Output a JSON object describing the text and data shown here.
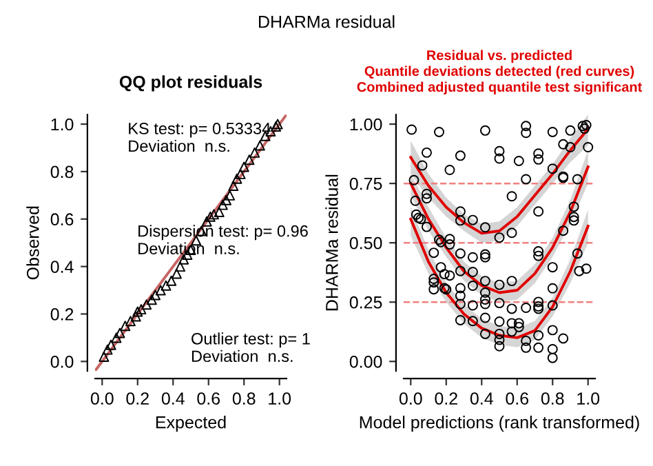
{
  "chart_data": [
    {
      "type": "scatter",
      "title": "DHARMa residual",
      "subtitle": "QQ plot residuals",
      "xlabel": "Expected",
      "ylabel": "Observed",
      "xlim": [
        -0.04,
        1.04
      ],
      "ylim": [
        -0.04,
        1.04
      ],
      "xticks": [
        {
          "value": 0,
          "label": "0.0"
        },
        {
          "value": 0.2,
          "label": "0.2"
        },
        {
          "value": 0.4,
          "label": "0.4"
        },
        {
          "value": 0.6,
          "label": "0.6"
        },
        {
          "value": 0.8,
          "label": "0.8"
        },
        {
          "value": 1,
          "label": "1.0"
        }
      ],
      "yticks": [
        {
          "value": 0,
          "label": "0.0"
        },
        {
          "value": 0.2,
          "label": "0.2"
        },
        {
          "value": 0.4,
          "label": "0.4"
        },
        {
          "value": 0.6,
          "label": "0.6"
        },
        {
          "value": 0.8,
          "label": "0.8"
        },
        {
          "value": 1,
          "label": "1.0"
        }
      ],
      "grid": false,
      "legend": false,
      "annotations": [
        "KS test: p= 0.53334\nDeviation  n.s.",
        "Dispersion test: p= 0.96\nDeviation  n.s.",
        "Outlier test: p= 1\nDeviation  n.s."
      ],
      "series": [
        {
          "marker": "triangle",
          "color": "#000000",
          "x": [
            0.01,
            0.03,
            0.05,
            0.08,
            0.1,
            0.13,
            0.16,
            0.19,
            0.2,
            0.22,
            0.25,
            0.28,
            0.3,
            0.33,
            0.36,
            0.39,
            0.42,
            0.44,
            0.46,
            0.48,
            0.5,
            0.53,
            0.56,
            0.59,
            0.61,
            0.63,
            0.66,
            0.68,
            0.7,
            0.72,
            0.74,
            0.76,
            0.78,
            0.8,
            0.83,
            0.86,
            0.89,
            0.92,
            0.95,
            0.98,
            0.99
          ],
          "values": [
            0.02,
            0.05,
            0.07,
            0.1,
            0.12,
            0.15,
            0.17,
            0.19,
            0.21,
            0.22,
            0.24,
            0.26,
            0.28,
            0.3,
            0.32,
            0.34,
            0.37,
            0.4,
            0.43,
            0.45,
            0.47,
            0.51,
            0.55,
            0.59,
            0.61,
            0.62,
            0.63,
            0.66,
            0.68,
            0.7,
            0.74,
            0.77,
            0.79,
            0.82,
            0.85,
            0.88,
            0.91,
            0.95,
            0.97,
            0.99,
            1.0
          ]
        },
        {
          "type": "line",
          "color": "#c86464",
          "x": [
            -0.04,
            1.04
          ],
          "values": [
            -0.04,
            1.04
          ]
        }
      ]
    },
    {
      "type": "scatter",
      "title": "Residual vs. predicted\nQuantile deviations detected (red curves)\nCombined adjusted quantile test significant",
      "xlabel": "Model predictions (rank transformed)",
      "ylabel": "DHARMa residual",
      "xlim": [
        -0.04,
        1.04
      ],
      "ylim": [
        -0.04,
        1.04
      ],
      "xticks": [
        {
          "value": 0,
          "label": "0.0"
        },
        {
          "value": 0.2,
          "label": "0.2"
        },
        {
          "value": 0.4,
          "label": "0.4"
        },
        {
          "value": 0.6,
          "label": "0.6"
        },
        {
          "value": 0.8,
          "label": "0.8"
        },
        {
          "value": 1,
          "label": "1.0"
        }
      ],
      "yticks": [
        {
          "value": 0,
          "label": "0.00"
        },
        {
          "value": 0.25,
          "label": "0.25"
        },
        {
          "value": 0.5,
          "label": "0.50"
        },
        {
          "value": 0.75,
          "label": "0.75"
        },
        {
          "value": 1,
          "label": "1.00"
        }
      ],
      "grid": false,
      "legend": false,
      "ref_lines": [
        {
          "axis": "y",
          "value": 0.25,
          "color": "#f08080",
          "line_style": "dashed"
        },
        {
          "axis": "y",
          "value": 0.5,
          "color": "#f08080",
          "line_style": "dashed"
        },
        {
          "axis": "y",
          "value": 0.75,
          "color": "#f08080",
          "line_style": "dashed"
        }
      ],
      "series": [
        {
          "marker": "circle",
          "color": "#000000",
          "x": [
            0.005,
            0.018,
            0.026,
            0.031,
            0.044,
            0.057,
            0.065,
            0.09,
            0.09,
            0.09,
            0.09,
            0.13,
            0.13,
            0.13,
            0.13,
            0.16,
            0.16,
            0.17,
            0.17,
            0.19,
            0.19,
            0.2,
            0.22,
            0.22,
            0.22,
            0.22,
            0.28,
            0.28,
            0.28,
            0.28,
            0.28,
            0.28,
            0.28,
            0.28,
            0.28,
            0.35,
            0.35,
            0.35,
            0.35,
            0.35,
            0.35,
            0.42,
            0.42,
            0.42,
            0.42,
            0.42,
            0.42,
            0.42,
            0.42,
            0.42,
            0.42,
            0.5,
            0.5,
            0.5,
            0.5,
            0.5,
            0.5,
            0.5,
            0.5,
            0.5,
            0.57,
            0.57,
            0.57,
            0.57,
            0.57,
            0.57,
            0.61,
            0.61,
            0.61,
            0.65,
            0.65,
            0.65,
            0.65,
            0.65,
            0.65,
            0.72,
            0.72,
            0.72,
            0.72,
            0.72,
            0.72,
            0.72,
            0.72,
            0.72,
            0.72,
            0.8,
            0.8,
            0.8,
            0.8,
            0.8,
            0.8,
            0.8,
            0.8,
            0.86,
            0.86,
            0.86,
            0.86,
            0.86,
            0.9,
            0.9,
            0.92,
            0.92,
            0.92,
            0.94,
            0.94,
            0.95,
            0.97,
            0.98,
            0.99,
            0.99,
            1.0
          ],
          "values": [
            0.977,
            0.764,
            0.677,
            0.619,
            0.605,
            0.6,
            0.826,
            0.88,
            0.706,
            0.687,
            0.567,
            0.458,
            0.348,
            0.333,
            0.304,
            0.967,
            0.513,
            0.503,
            0.397,
            0.368,
            0.309,
            0.304,
            0.807,
            0.516,
            0.493,
            0.362,
            0.867,
            0.632,
            0.594,
            0.455,
            0.381,
            0.309,
            0.277,
            0.242,
            0.174,
            0.596,
            0.439,
            0.377,
            0.319,
            0.236,
            0.17,
            0.973,
            0.565,
            0.451,
            0.439,
            0.339,
            0.29,
            0.261,
            0.242,
            0.184,
            0.116,
            0.886,
            0.855,
            0.522,
            0.323,
            0.246,
            0.168,
            0.116,
            0.091,
            0.064,
            0.696,
            0.542,
            0.339,
            0.222,
            0.161,
            0.126,
            0.845,
            0.161,
            0.145,
            0.992,
            0.963,
            0.768,
            0.226,
            0.087,
            0.058,
            0.876,
            0.851,
            0.632,
            0.464,
            0.445,
            0.251,
            0.232,
            0.222,
            0.11,
            0.058,
            0.967,
            0.812,
            0.397,
            0.308,
            0.236,
            0.132,
            0.052,
            0.015,
            0.915,
            0.779,
            0.774,
            0.551,
            0.097,
            0.903,
            0.973,
            0.652,
            0.609,
            0.594,
            0.768,
            0.455,
            0.381,
            0.992,
            0.981,
            0.996,
            0.391,
            0.903
          ]
        },
        {
          "type": "line",
          "color": "#e00000",
          "x": [
            0,
            0.1,
            0.2,
            0.3,
            0.4,
            0.5,
            0.6,
            0.7,
            0.8,
            0.9,
            1.0
          ],
          "values": [
            0.86,
            0.74,
            0.65,
            0.585,
            0.54,
            0.55,
            0.61,
            0.7,
            0.79,
            0.89,
            0.98
          ],
          "lower": [
            0.79,
            0.69,
            0.61,
            0.55,
            0.5,
            0.51,
            0.57,
            0.66,
            0.75,
            0.84,
            0.91
          ],
          "upper": [
            0.93,
            0.79,
            0.69,
            0.62,
            0.58,
            0.59,
            0.65,
            0.74,
            0.83,
            0.94,
            1.04
          ]
        },
        {
          "type": "line",
          "color": "#e00000",
          "x": [
            0,
            0.1,
            0.2,
            0.3,
            0.4,
            0.5,
            0.6,
            0.7,
            0.8,
            0.9,
            1.0
          ],
          "values": [
            0.75,
            0.6,
            0.48,
            0.38,
            0.32,
            0.29,
            0.3,
            0.37,
            0.48,
            0.63,
            0.82
          ],
          "lower": [
            0.7,
            0.55,
            0.44,
            0.34,
            0.28,
            0.25,
            0.26,
            0.33,
            0.44,
            0.58,
            0.75
          ],
          "upper": [
            0.79,
            0.65,
            0.52,
            0.42,
            0.36,
            0.33,
            0.34,
            0.41,
            0.52,
            0.68,
            0.89
          ]
        },
        {
          "type": "line",
          "color": "#e00000",
          "x": [
            0,
            0.1,
            0.2,
            0.3,
            0.4,
            0.5,
            0.6,
            0.7,
            0.8,
            0.9,
            1.0
          ],
          "values": [
            0.6,
            0.42,
            0.29,
            0.2,
            0.14,
            0.11,
            0.1,
            0.13,
            0.23,
            0.38,
            0.57
          ],
          "lower": [
            0.53,
            0.37,
            0.25,
            0.16,
            0.1,
            0.07,
            0.06,
            0.09,
            0.19,
            0.33,
            0.5
          ],
          "upper": [
            0.65,
            0.47,
            0.33,
            0.24,
            0.18,
            0.15,
            0.14,
            0.17,
            0.27,
            0.43,
            0.64
          ]
        }
      ]
    }
  ]
}
